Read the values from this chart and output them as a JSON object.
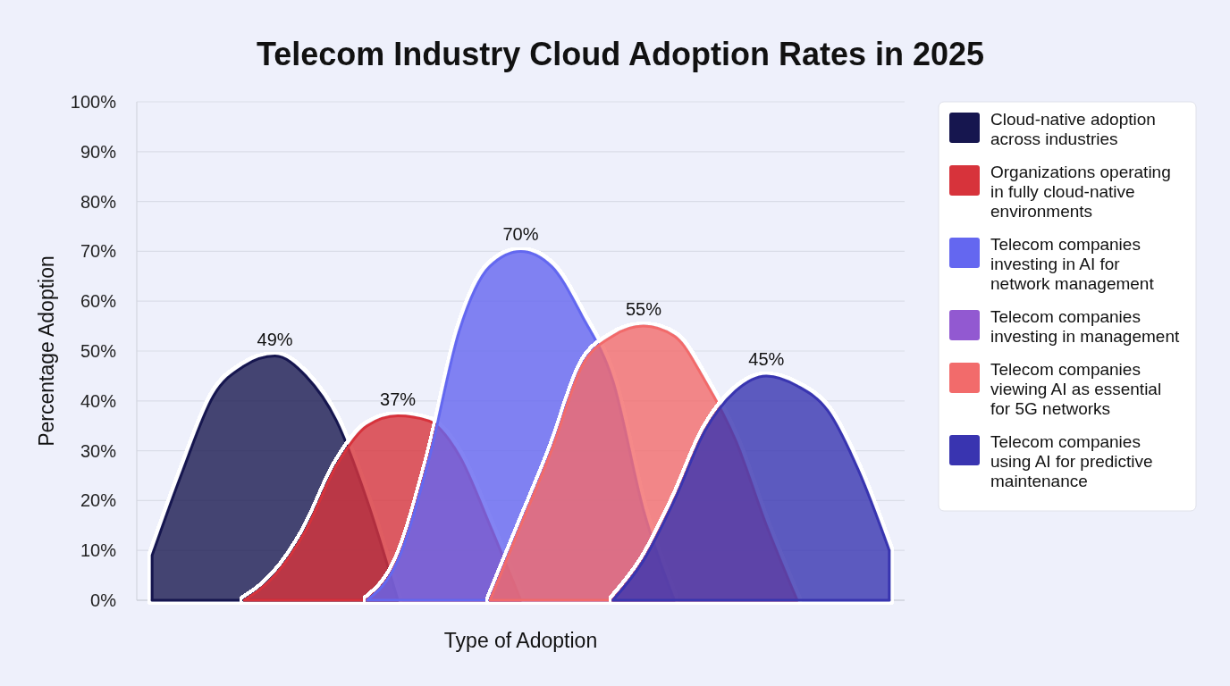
{
  "chart_data": {
    "type": "area",
    "title": "Telecom Industry Cloud Adoption Rates in 2025",
    "xlabel": "Type of Adoption",
    "ylabel": "Percentage Adoption",
    "categories": [
      null,
      null,
      null,
      null,
      null,
      null,
      null,
      null,
      null,
      null,
      null,
      null,
      null,
      null,
      null,
      null,
      null,
      null,
      null,
      null,
      null,
      null,
      null,
      null,
      null
    ],
    "series": [
      {
        "name": "Cloud-native adoption across industries",
        "color": "#16164f",
        "values": [
          9,
          26,
          41,
          47,
          49,
          45,
          36,
          20,
          0,
          null,
          null,
          null,
          null,
          null,
          null,
          null,
          null,
          null,
          null,
          null,
          null,
          null,
          null,
          null,
          null
        ],
        "value_labels": [
          null,
          null,
          null,
          null,
          "49%",
          null,
          null,
          null,
          null,
          null,
          null,
          null,
          null,
          null,
          null,
          null,
          null,
          null,
          null,
          null,
          null,
          null,
          null,
          null,
          null
        ]
      },
      {
        "name": "Organizations operating in fully cloud-native environments",
        "color": "#d7333b",
        "values": [
          null,
          null,
          null,
          0,
          5,
          14,
          27,
          35,
          37,
          36,
          29,
          15,
          0,
          null,
          null,
          null,
          null,
          null,
          null,
          null,
          null,
          null,
          null,
          null,
          null
        ],
        "value_labels": [
          null,
          null,
          null,
          null,
          null,
          null,
          null,
          null,
          "37%",
          null,
          null,
          null,
          null,
          null,
          null,
          null,
          null,
          null,
          null,
          null,
          null,
          null,
          null,
          null,
          null
        ]
      },
      {
        "name": "Telecom companies investing in AI for network management",
        "color": "#6467f0",
        "values": [
          null,
          null,
          null,
          null,
          null,
          null,
          null,
          0,
          8,
          28,
          54,
          67,
          70,
          67,
          57,
          44,
          18,
          0,
          null,
          null,
          null,
          null,
          null,
          null,
          null
        ],
        "value_labels": [
          null,
          null,
          null,
          null,
          null,
          null,
          null,
          null,
          null,
          null,
          null,
          null,
          "70%",
          null,
          null,
          null,
          null,
          null,
          null,
          null,
          null,
          null,
          null,
          null,
          null
        ]
      },
      {
        "name": "Telecom companies investing in management",
        "color": "#9259d1",
        "values": [
          null,
          null,
          null,
          null,
          null,
          null,
          null,
          null,
          null,
          null,
          null,
          null,
          null,
          null,
          null,
          null,
          null,
          null,
          null,
          null,
          null,
          null,
          null,
          null,
          null
        ]
      },
      {
        "name": "Telecom companies viewing AI as essential for 5G networks",
        "color": "#f26b6b",
        "values": [
          null,
          null,
          null,
          null,
          null,
          null,
          null,
          null,
          null,
          null,
          null,
          0,
          15,
          30,
          47,
          53,
          55,
          53,
          44,
          32,
          15,
          0,
          null,
          null,
          null
        ],
        "value_labels": [
          null,
          null,
          null,
          null,
          null,
          null,
          null,
          null,
          null,
          null,
          null,
          null,
          null,
          null,
          null,
          null,
          "55%",
          null,
          null,
          null,
          null,
          null,
          null,
          null,
          null
        ]
      },
      {
        "name": "Telecom companies using AI for predictive maintenance",
        "color": "#3934b0",
        "values": [
          null,
          null,
          null,
          null,
          null,
          null,
          null,
          null,
          null,
          null,
          null,
          null,
          null,
          null,
          null,
          0,
          8,
          20,
          34,
          42,
          45,
          43,
          38,
          26,
          10
        ],
        "value_labels": [
          null,
          null,
          null,
          null,
          null,
          null,
          null,
          null,
          null,
          null,
          null,
          null,
          null,
          null,
          null,
          null,
          null,
          null,
          null,
          null,
          "45%",
          null,
          null,
          null,
          null
        ]
      }
    ],
    "ylim": [
      0,
      100
    ],
    "yticks": [
      {
        "value": 0,
        "label": "0%"
      },
      {
        "value": 10,
        "label": "10%"
      },
      {
        "value": 20,
        "label": "20%"
      },
      {
        "value": 30,
        "label": "30%"
      },
      {
        "value": 40,
        "label": "40%"
      },
      {
        "value": 50,
        "label": "50%"
      },
      {
        "value": 60,
        "label": "60%"
      },
      {
        "value": 70,
        "label": "70%"
      },
      {
        "value": 80,
        "label": "80%"
      },
      {
        "value": 90,
        "label": "90%"
      },
      {
        "value": 100,
        "label": "100%"
      }
    ],
    "grid": "y",
    "legend": "right",
    "tick_labels": "y"
  }
}
